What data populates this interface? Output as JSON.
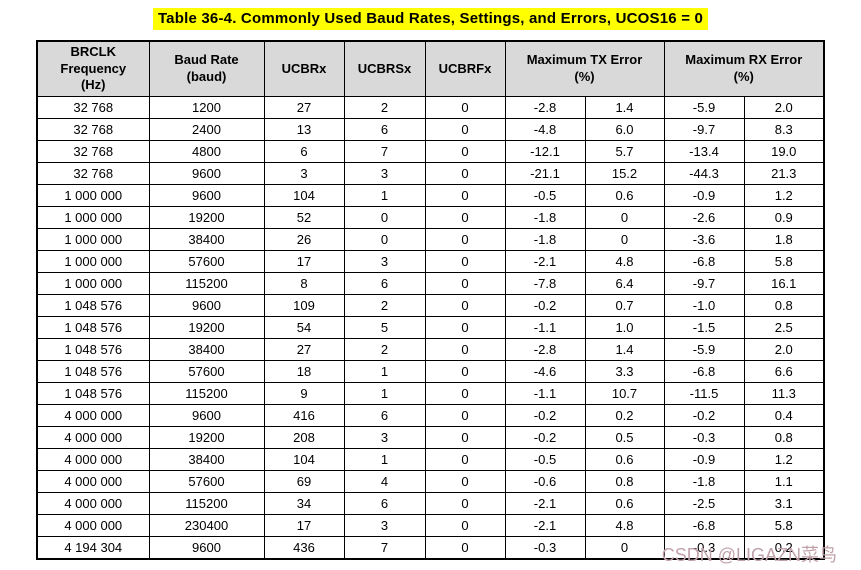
{
  "page": {
    "title": "Table 36-4. Commonly Used Baud Rates, Settings, and Errors, UCOS16 = 0",
    "watermark": "CSDN @LIGAZN菜鸟"
  },
  "colors": {
    "title_highlight": "#ffff00",
    "header_bg": "#d9d9d9",
    "border": "#000000",
    "watermark_text": "#c2a2aa"
  },
  "table": {
    "column_groups": [
      {
        "label": "BRCLK\nFrequency\n(Hz)",
        "colspan": 1
      },
      {
        "label": "Baud Rate\n(baud)",
        "colspan": 1
      },
      {
        "label": "UCBRx",
        "colspan": 1
      },
      {
        "label": "UCBRSx",
        "colspan": 1
      },
      {
        "label": "UCBRFx",
        "colspan": 1
      },
      {
        "label": "Maximum TX Error\n(%)",
        "colspan": 2
      },
      {
        "label": "Maximum RX Error\n(%)",
        "colspan": 2
      }
    ],
    "rows": [
      [
        "32 768",
        "1200",
        "27",
        "2",
        "0",
        "-2.8",
        "1.4",
        "-5.9",
        "2.0"
      ],
      [
        "32 768",
        "2400",
        "13",
        "6",
        "0",
        "-4.8",
        "6.0",
        "-9.7",
        "8.3"
      ],
      [
        "32 768",
        "4800",
        "6",
        "7",
        "0",
        "-12.1",
        "5.7",
        "-13.4",
        "19.0"
      ],
      [
        "32 768",
        "9600",
        "3",
        "3",
        "0",
        "-21.1",
        "15.2",
        "-44.3",
        "21.3"
      ],
      [
        "1 000 000",
        "9600",
        "104",
        "1",
        "0",
        "-0.5",
        "0.6",
        "-0.9",
        "1.2"
      ],
      [
        "1 000 000",
        "19200",
        "52",
        "0",
        "0",
        "-1.8",
        "0",
        "-2.6",
        "0.9"
      ],
      [
        "1 000 000",
        "38400",
        "26",
        "0",
        "0",
        "-1.8",
        "0",
        "-3.6",
        "1.8"
      ],
      [
        "1 000 000",
        "57600",
        "17",
        "3",
        "0",
        "-2.1",
        "4.8",
        "-6.8",
        "5.8"
      ],
      [
        "1 000 000",
        "115200",
        "8",
        "6",
        "0",
        "-7.8",
        "6.4",
        "-9.7",
        "16.1"
      ],
      [
        "1 048 576",
        "9600",
        "109",
        "2",
        "0",
        "-0.2",
        "0.7",
        "-1.0",
        "0.8"
      ],
      [
        "1 048 576",
        "19200",
        "54",
        "5",
        "0",
        "-1.1",
        "1.0",
        "-1.5",
        "2.5"
      ],
      [
        "1 048 576",
        "38400",
        "27",
        "2",
        "0",
        "-2.8",
        "1.4",
        "-5.9",
        "2.0"
      ],
      [
        "1 048 576",
        "57600",
        "18",
        "1",
        "0",
        "-4.6",
        "3.3",
        "-6.8",
        "6.6"
      ],
      [
        "1 048 576",
        "115200",
        "9",
        "1",
        "0",
        "-1.1",
        "10.7",
        "-11.5",
        "11.3"
      ],
      [
        "4 000 000",
        "9600",
        "416",
        "6",
        "0",
        "-0.2",
        "0.2",
        "-0.2",
        "0.4"
      ],
      [
        "4 000 000",
        "19200",
        "208",
        "3",
        "0",
        "-0.2",
        "0.5",
        "-0.3",
        "0.8"
      ],
      [
        "4 000 000",
        "38400",
        "104",
        "1",
        "0",
        "-0.5",
        "0.6",
        "-0.9",
        "1.2"
      ],
      [
        "4 000 000",
        "57600",
        "69",
        "4",
        "0",
        "-0.6",
        "0.8",
        "-1.8",
        "1.1"
      ],
      [
        "4 000 000",
        "115200",
        "34",
        "6",
        "0",
        "-2.1",
        "0.6",
        "-2.5",
        "3.1"
      ],
      [
        "4 000 000",
        "230400",
        "17",
        "3",
        "0",
        "-2.1",
        "4.8",
        "-6.8",
        "5.8"
      ],
      [
        "4 194 304",
        "9600",
        "436",
        "7",
        "0",
        "-0.3",
        "0",
        "-0.3",
        "0.2"
      ]
    ]
  }
}
